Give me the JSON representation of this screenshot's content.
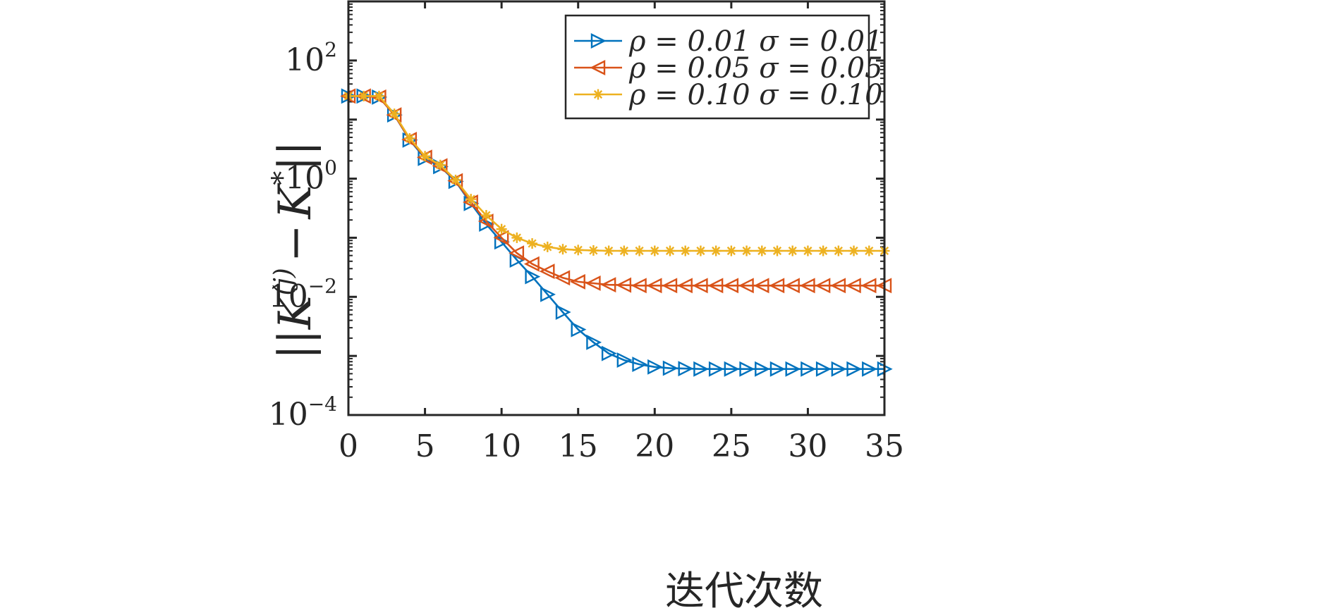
{
  "chart_data": {
    "type": "line",
    "xlabel": "迭代次数",
    "ylabel": "||K(j) − K*||",
    "ylabel_parts": {
      "bars": "||",
      "k": "K",
      "j": "(j)",
      "minus": "−",
      "kstar": "K",
      "star": "*"
    },
    "xscale": "linear",
    "yscale": "log",
    "xlim": [
      0,
      35
    ],
    "ylim": [
      0.0001,
      1000
    ],
    "xticks": [
      0,
      5,
      10,
      15,
      20,
      25,
      30,
      35
    ],
    "xtick_labels": [
      "0",
      "5",
      "10",
      "15",
      "20",
      "25",
      "30",
      "35"
    ],
    "yticks": [
      0.0001,
      0.01,
      1,
      100
    ],
    "ytick_labels": [
      {
        "base": "10",
        "exp": "−4"
      },
      {
        "base": "10",
        "exp": "−2"
      },
      {
        "base": "10",
        "exp": "0"
      },
      {
        "base": "10",
        "exp": "2"
      }
    ],
    "legend_position": "top-right",
    "grid": false,
    "series": [
      {
        "name": "ρ = 0.01 σ = 0.01",
        "color": "#0072BD",
        "marker": "triangle-right",
        "x": [
          0,
          1,
          2,
          3,
          4,
          5,
          6,
          7,
          8,
          9,
          10,
          11,
          12,
          13,
          14,
          15,
          16,
          17,
          18,
          19,
          20,
          21,
          22,
          23,
          24,
          25,
          26,
          27,
          28,
          29,
          30,
          31,
          32,
          33,
          34,
          35
        ],
        "y": [
          25,
          25,
          24,
          12,
          4.5,
          2.2,
          1.6,
          0.9,
          0.38,
          0.17,
          0.085,
          0.042,
          0.022,
          0.011,
          0.0055,
          0.0028,
          0.0017,
          0.0011,
          0.00085,
          0.00072,
          0.00065,
          0.00062,
          0.00061,
          0.0006,
          0.0006,
          0.0006,
          0.0006,
          0.0006,
          0.0006,
          0.0006,
          0.0006,
          0.0006,
          0.0006,
          0.0006,
          0.0006,
          0.0006
        ]
      },
      {
        "name": "ρ = 0.05 σ = 0.05",
        "color": "#D95319",
        "marker": "triangle-left",
        "x": [
          0,
          1,
          2,
          3,
          4,
          5,
          6,
          7,
          8,
          9,
          10,
          11,
          12,
          13,
          14,
          15,
          16,
          17,
          18,
          19,
          20,
          21,
          22,
          23,
          24,
          25,
          26,
          27,
          28,
          29,
          30,
          31,
          32,
          33,
          34,
          35
        ],
        "y": [
          25,
          25,
          24,
          12,
          4.6,
          2.3,
          1.65,
          0.92,
          0.4,
          0.19,
          0.1,
          0.055,
          0.036,
          0.027,
          0.021,
          0.018,
          0.017,
          0.016,
          0.0158,
          0.0155,
          0.0155,
          0.0155,
          0.0155,
          0.0155,
          0.0155,
          0.0155,
          0.0155,
          0.0155,
          0.0155,
          0.0155,
          0.0155,
          0.0155,
          0.0155,
          0.0155,
          0.0155,
          0.0155
        ]
      },
      {
        "name": "ρ = 0.10 σ = 0.10",
        "color": "#EDB120",
        "marker": "asterisk",
        "x": [
          0,
          1,
          2,
          3,
          4,
          5,
          6,
          7,
          8,
          9,
          10,
          11,
          12,
          13,
          14,
          15,
          16,
          17,
          18,
          19,
          20,
          21,
          22,
          23,
          24,
          25,
          26,
          27,
          28,
          29,
          30,
          31,
          32,
          33,
          34,
          35
        ],
        "y": [
          25,
          25,
          25,
          12.5,
          4.8,
          2.4,
          1.7,
          0.95,
          0.45,
          0.24,
          0.14,
          0.1,
          0.08,
          0.07,
          0.064,
          0.062,
          0.061,
          0.06,
          0.06,
          0.06,
          0.06,
          0.06,
          0.06,
          0.06,
          0.06,
          0.06,
          0.06,
          0.06,
          0.06,
          0.06,
          0.06,
          0.06,
          0.06,
          0.06,
          0.06,
          0.06
        ]
      }
    ]
  }
}
